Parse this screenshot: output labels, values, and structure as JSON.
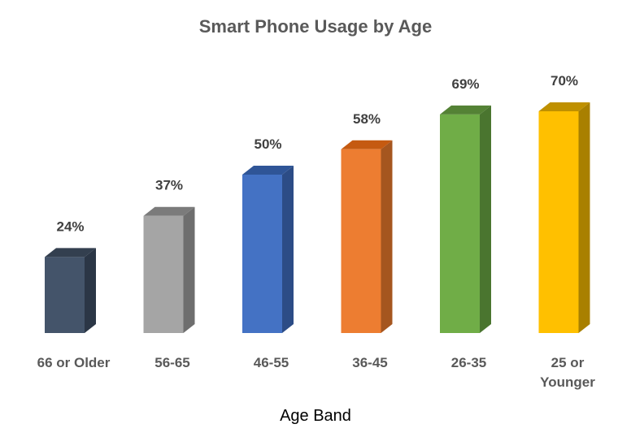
{
  "chart_data": {
    "type": "bar",
    "title": "Smart Phone Usage by Age",
    "xlabel": "Age Band",
    "ylabel": "",
    "categories": [
      [
        "66 or Older"
      ],
      [
        "56-65"
      ],
      [
        "46-55"
      ],
      [
        "36-45"
      ],
      [
        "26-35"
      ],
      [
        "25 or",
        "Younger"
      ]
    ],
    "values": [
      24,
      37,
      50,
      58,
      69,
      70
    ],
    "data_labels": [
      "24%",
      "37%",
      "50%",
      "58%",
      "69%",
      "70%"
    ],
    "value_unit": "%",
    "ylim": [
      0,
      70
    ],
    "grid": false,
    "legend": "none",
    "style": "3d-column",
    "colors": {
      "front": [
        "#44546A",
        "#A5A5A5",
        "#4472C4",
        "#ED7D31",
        "#70AD47",
        "#FFC000"
      ],
      "side": [
        "#2B3646",
        "#6E6E6E",
        "#2C4C86",
        "#A5561F",
        "#4A752F",
        "#A98000"
      ],
      "top": [
        "#333F4F",
        "#7B7B7B",
        "#2F5597",
        "#C55A11",
        "#548235",
        "#BF9000"
      ]
    }
  }
}
